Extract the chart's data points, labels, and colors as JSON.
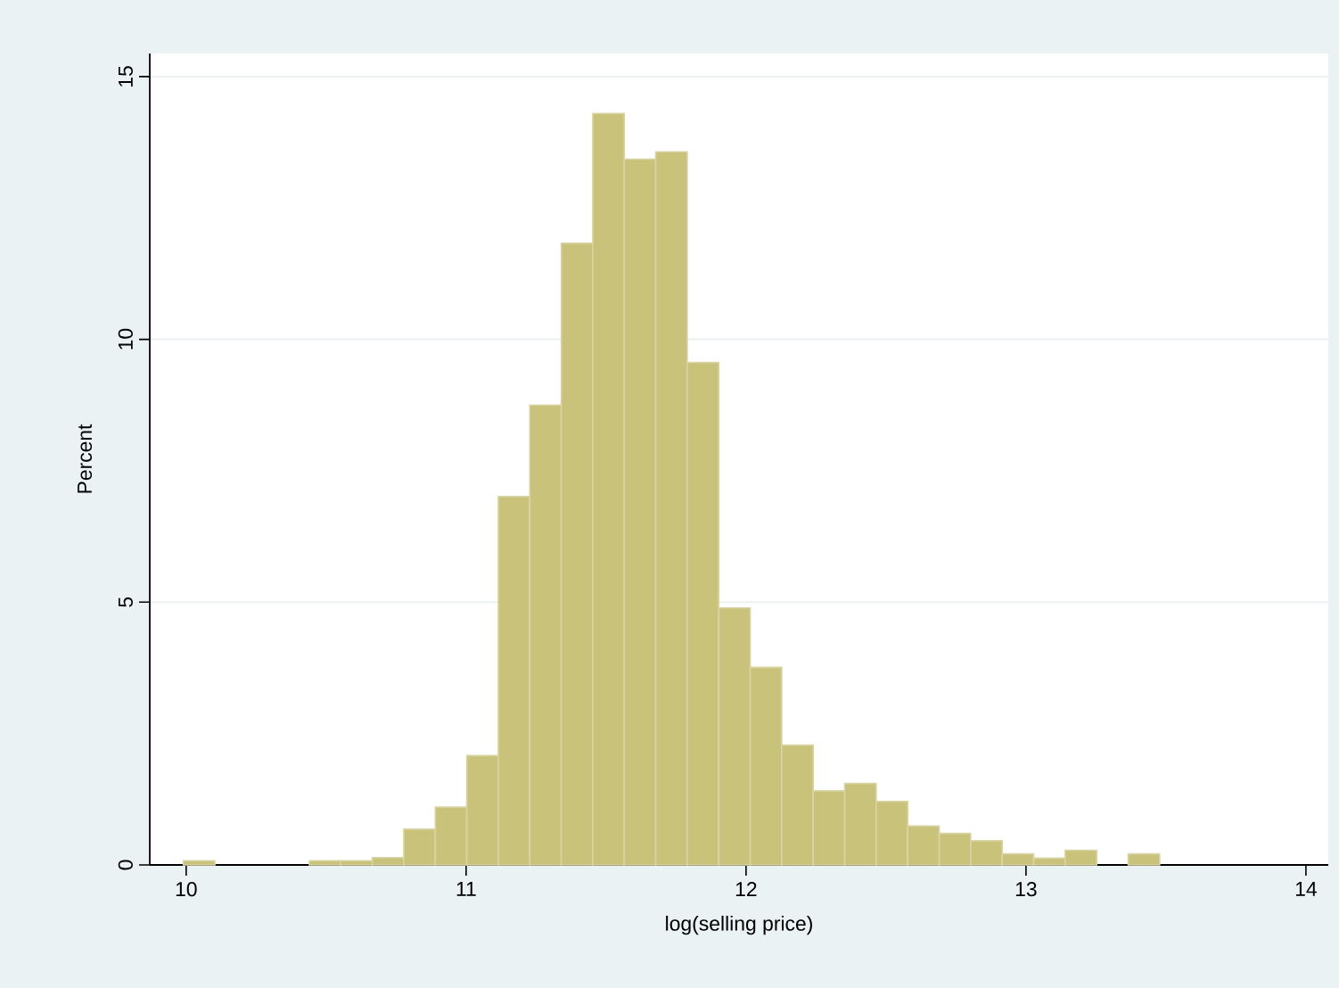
{
  "chart_data": {
    "type": "histogram",
    "xlabel": "log(selling price)",
    "ylabel": "Percent",
    "bins": [
      9.99,
      10.1025,
      10.215,
      10.3275,
      10.44,
      10.5525,
      10.665,
      10.7775,
      10.89,
      11.0025,
      11.115,
      11.2275,
      11.34,
      11.4525,
      11.565,
      11.6775,
      11.79,
      11.9025,
      12.015,
      12.1275,
      12.24,
      12.3525,
      12.465,
      12.5775,
      12.69,
      12.8025,
      12.915,
      13.0275,
      13.14,
      13.2525,
      13.365,
      13.4775
    ],
    "values": [
      0.08,
      0,
      0,
      0,
      0.08,
      0.08,
      0.14,
      0.68,
      1.1,
      2.08,
      7.01,
      8.75,
      11.83,
      14.3,
      13.43,
      13.57,
      9.56,
      4.89,
      3.76,
      2.28,
      1.41,
      1.55,
      1.21,
      0.74,
      0.6,
      0.46,
      0.21,
      0.13,
      0.28,
      0,
      0.21
    ],
    "color": "#c9c27b",
    "xlim": [
      9.87,
      14.08
    ],
    "ylim": [
      0,
      15.44
    ],
    "xticks": [
      10,
      11,
      12,
      13,
      14
    ],
    "yticks": [
      0,
      5,
      10,
      15
    ],
    "grid": "y"
  }
}
